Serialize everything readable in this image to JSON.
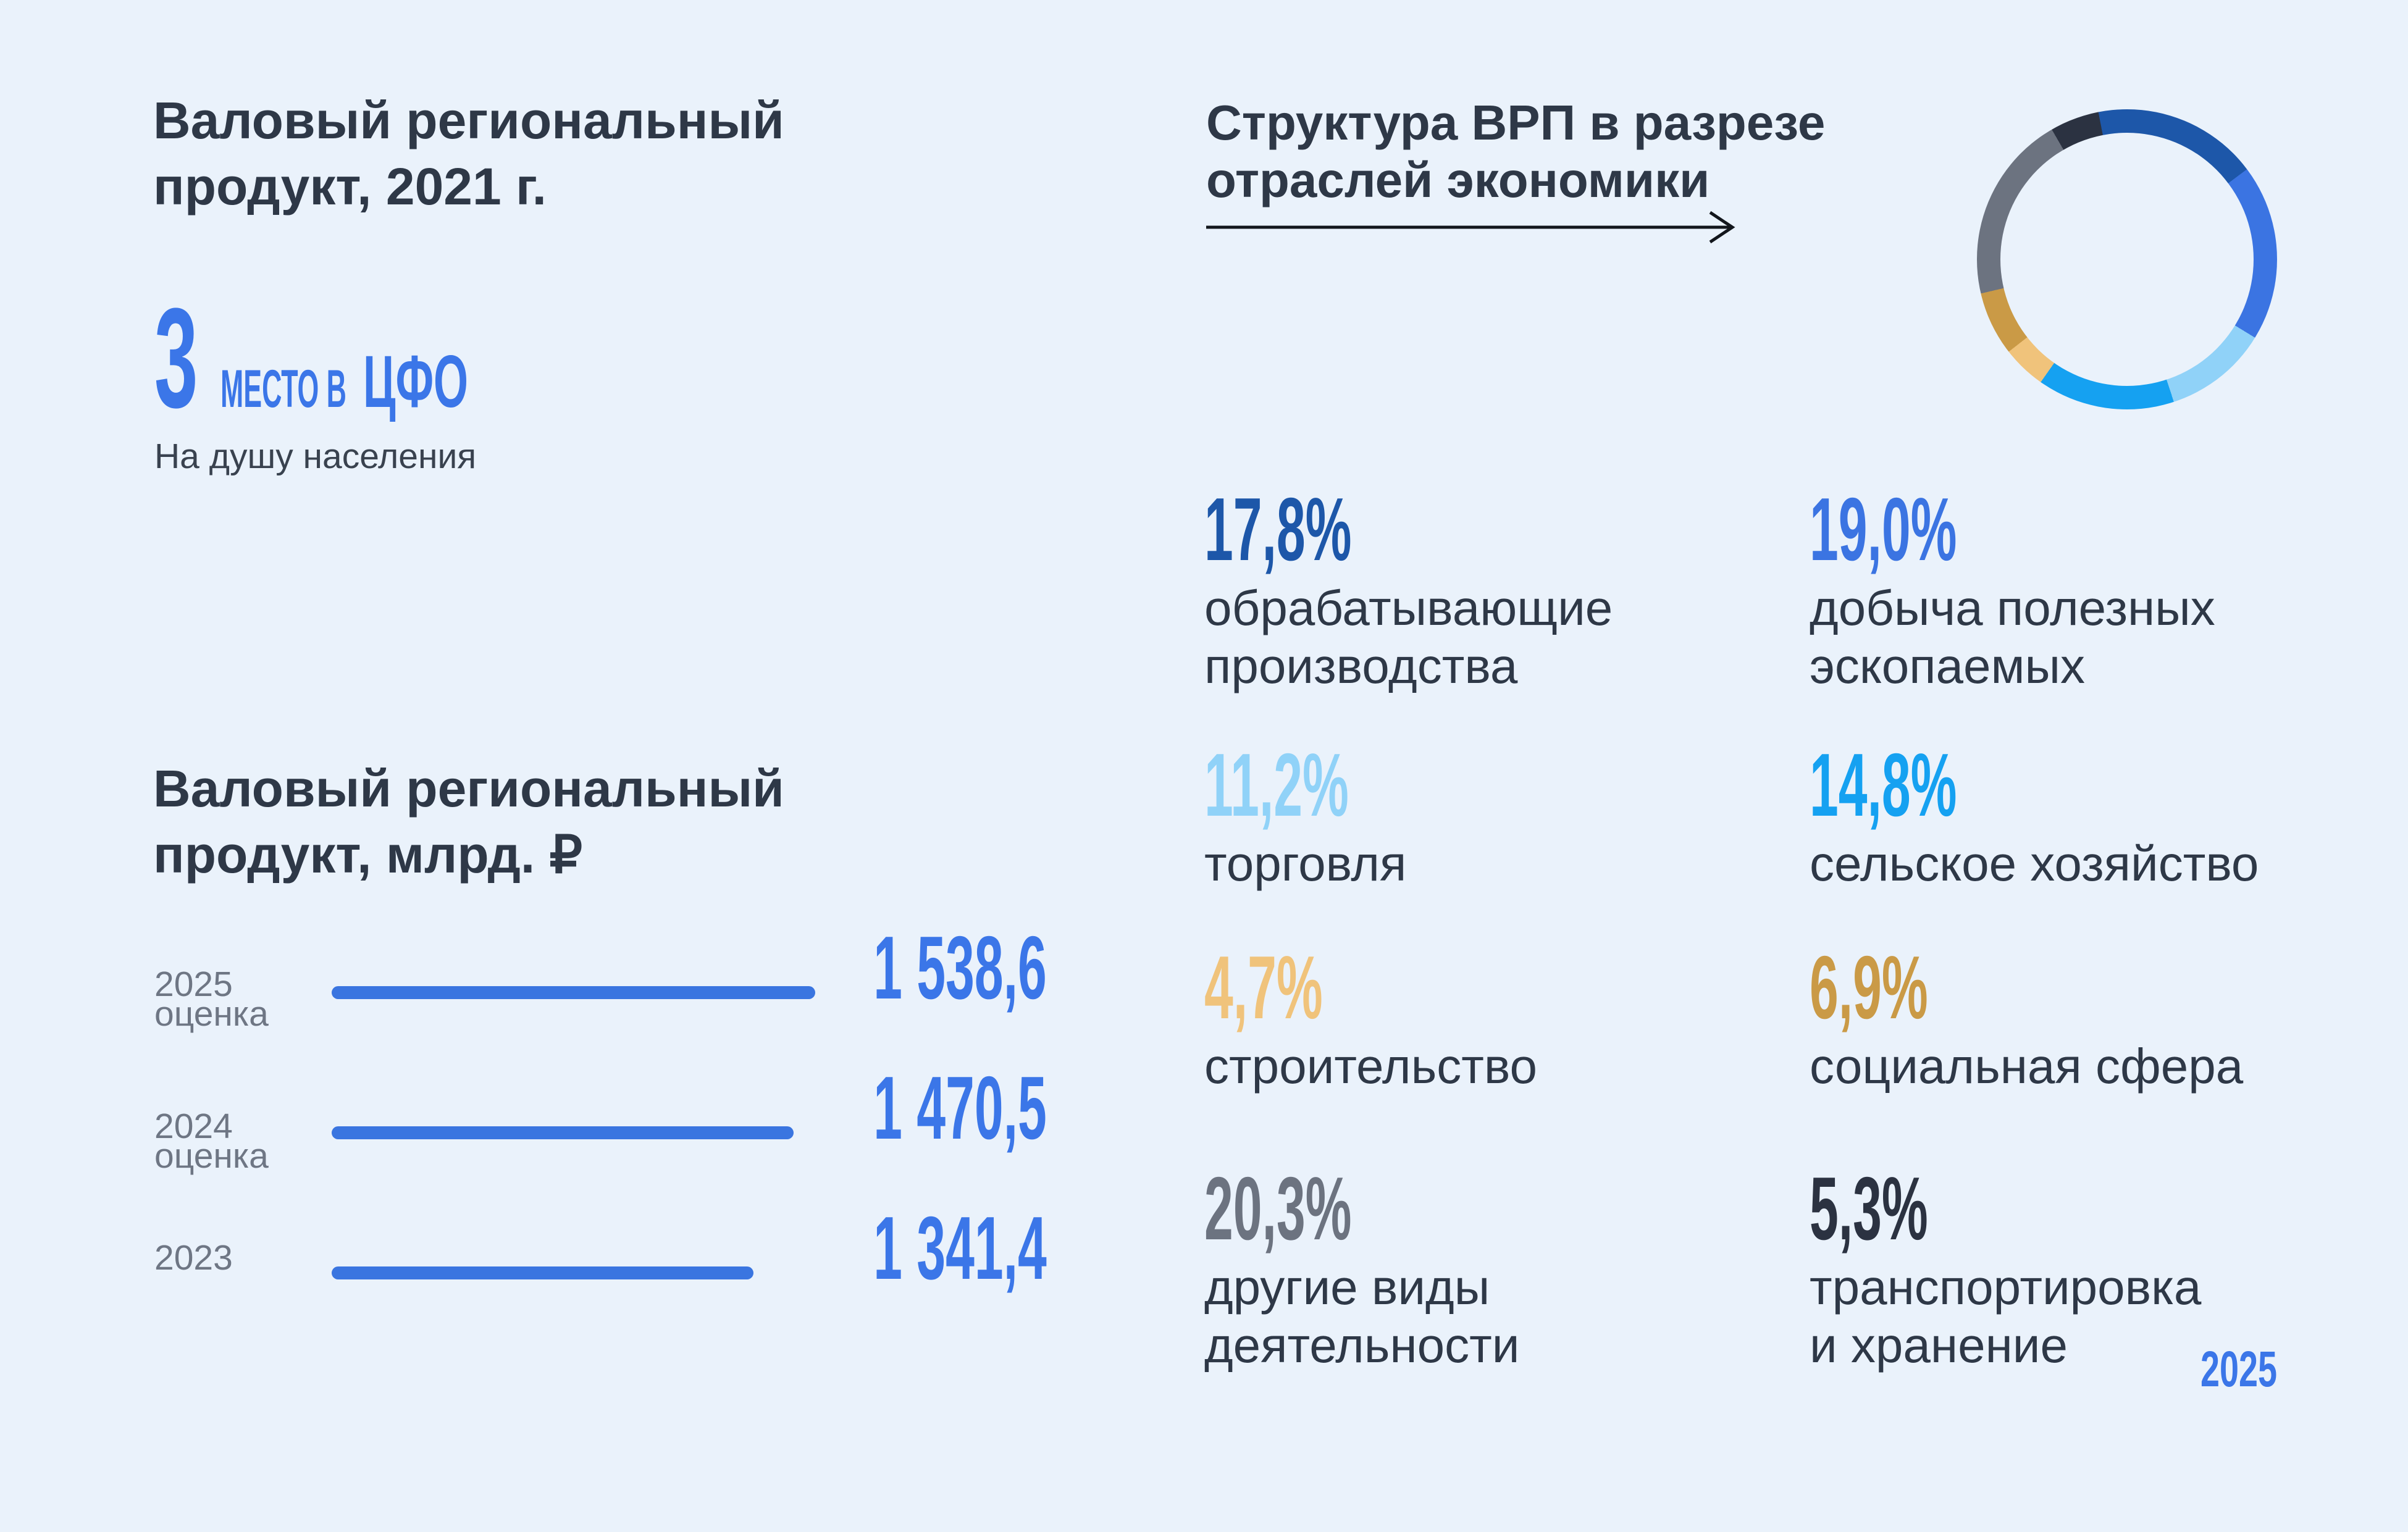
{
  "page": {
    "year_badge": "2025",
    "colors": {
      "background": "#EAF2FB",
      "heading": "#2E3847",
      "year_gray": "#6E7684",
      "subtitle": "#39424F",
      "accent_blue": "#3B76E8",
      "bar_blue": "#3A75E0",
      "arrow": "#12161C"
    }
  },
  "left": {
    "title_2021": "Валовый региональный\nпродукт, 2021 г.",
    "rank": {
      "number": "3",
      "label": "МЕСТО В",
      "region": "ЦФО",
      "sublabel": "На душу населения"
    },
    "grp": {
      "title": "Валовый региональный\nпродукт, млрд. ₽",
      "rows": [
        {
          "year": "2025",
          "note": "оценка",
          "value": 1538.6,
          "value_label": "1 538,6"
        },
        {
          "year": "2024",
          "note": "оценка",
          "value": 1470.5,
          "value_label": "1 470,5"
        },
        {
          "year": "2023",
          "note": "",
          "value": 1341.4,
          "value_label": "1 341,4"
        }
      ]
    }
  },
  "right": {
    "title": "Структура ВРП в разрезе\nотраслей экономики",
    "sectors": [
      {
        "pct": 17.8,
        "pct_label": "17,8%",
        "name": "обрабатывающие\nпроизводства",
        "color": "#1D57A9"
      },
      {
        "pct": 19.0,
        "pct_label": "19,0%",
        "name": "добыча полезных\nэскопаемых",
        "color": "#3B74E2"
      },
      {
        "pct": 11.2,
        "pct_label": "11,2%",
        "name": "торговля",
        "color": "#90D2F8"
      },
      {
        "pct": 14.8,
        "pct_label": "14,8%",
        "name": "сельское хозяйство",
        "color": "#15A1F1"
      },
      {
        "pct": 4.7,
        "pct_label": "4,7%",
        "name": "строительство",
        "color": "#F0C37B"
      },
      {
        "pct": 6.9,
        "pct_label": "6,9%",
        "name": "социальная сфера",
        "color": "#CA9A46"
      },
      {
        "pct": 20.3,
        "pct_label": "20,3%",
        "name": "другие виды\nдеятельности",
        "color": "#6C7380"
      },
      {
        "pct": 5.3,
        "pct_label": "5,3%",
        "name": "транспортировка\nи хранение",
        "color": "#2B3241"
      }
    ]
  },
  "chart_data": [
    {
      "type": "pie",
      "donut": true,
      "title": "Структура ВРП в разрезе отраслей экономики",
      "unit": "%",
      "labels": [
        "обрабатывающие производства",
        "добыча полезных эскопаемых",
        "торговля",
        "сельское хозяйство",
        "строительство",
        "социальная сфера",
        "другие виды деятельности",
        "транспортировка и хранение"
      ],
      "values": [
        17.8,
        19.0,
        11.2,
        14.8,
        4.7,
        6.9,
        20.3,
        5.3
      ],
      "colors": [
        "#1D57A9",
        "#3B74E2",
        "#90D2F8",
        "#15A1F1",
        "#F0C37B",
        "#CA9A46",
        "#6C7380",
        "#2B3241"
      ],
      "start_angle_deg": -11,
      "direction": "clockwise",
      "legend_position": "below-as-value-grid"
    },
    {
      "type": "bar",
      "orientation": "horizontal",
      "title": "Валовый региональный продукт, млрд. ₽",
      "categories": [
        "2025 оценка",
        "2024 оценка",
        "2023"
      ],
      "values": [
        1538.6,
        1470.5,
        1341.4
      ],
      "value_labels": [
        "1 538,6",
        "1 470,5",
        "1 341,4"
      ],
      "bar_color": "#3A75E0",
      "xlim": [
        0,
        1538.6
      ],
      "grid": false
    }
  ]
}
